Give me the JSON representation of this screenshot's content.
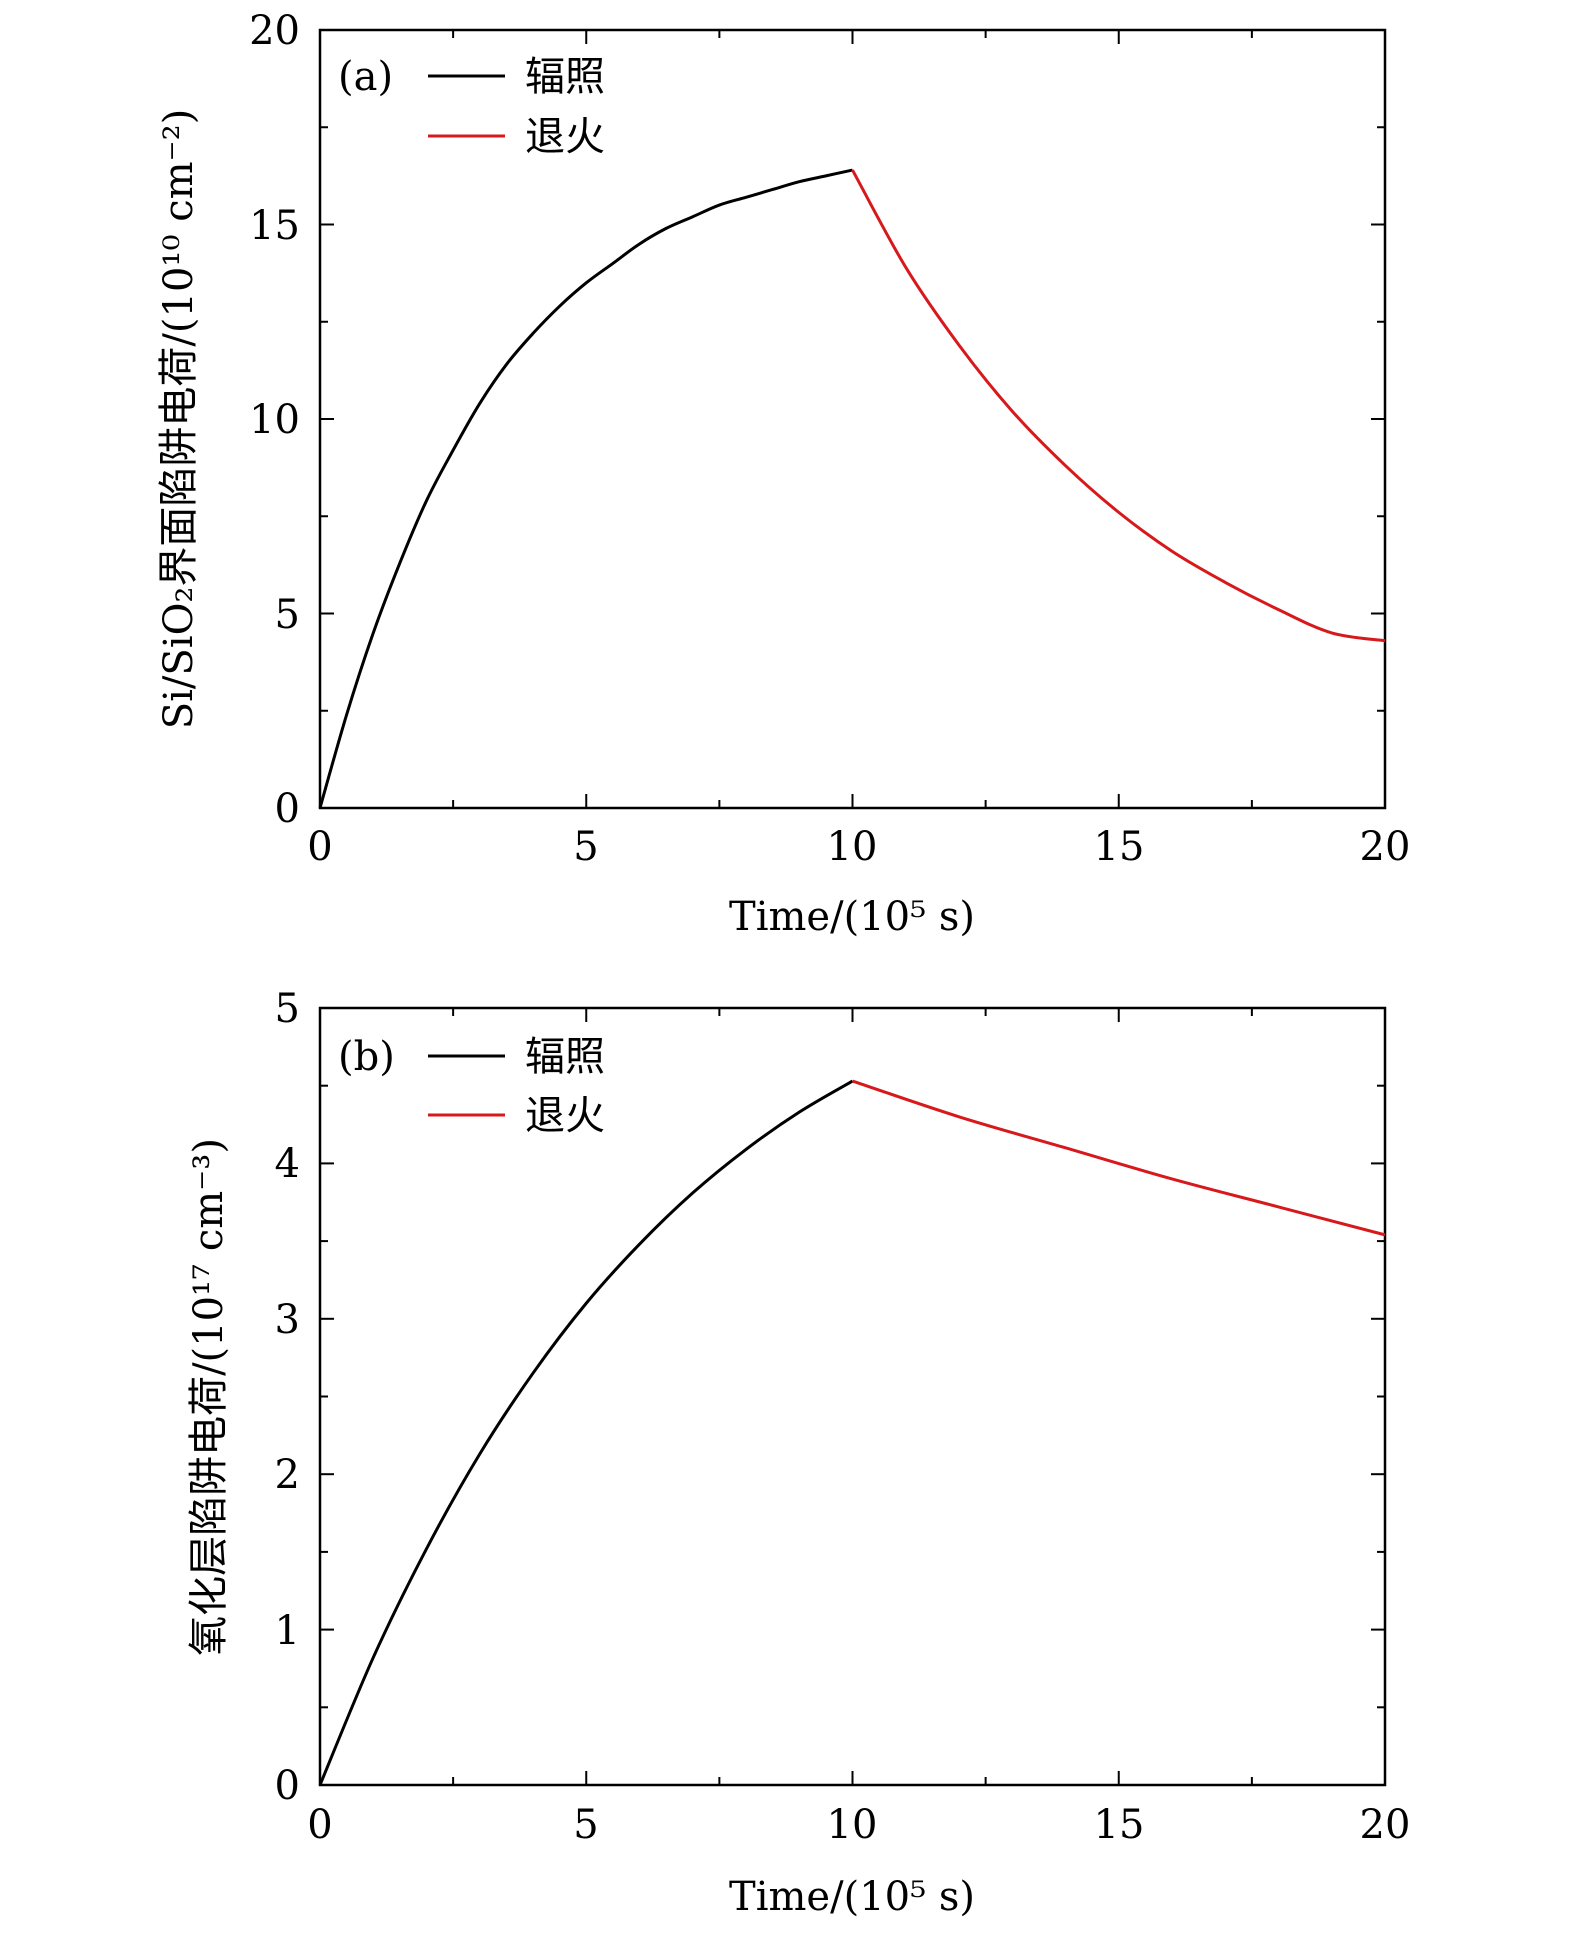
{
  "chart_data": [
    {
      "type": "line",
      "panel_label": "(a)",
      "xlabel": "Time/(10⁵ s)",
      "ylabel": "Si/SiO₂界面陷阱电荷/(10¹⁰ cm⁻²)",
      "xlim": [
        0,
        20
      ],
      "ylim": [
        0,
        20
      ],
      "xticks": [
        "0",
        "5",
        "10",
        "15",
        "20"
      ],
      "yticks": [
        "0",
        "5",
        "10",
        "15",
        "20"
      ],
      "grid": false,
      "legend": "top-left",
      "series": [
        {
          "name": "辐照",
          "color": "#000000",
          "x": [
            0,
            0.5,
            1,
            1.5,
            2,
            2.5,
            3,
            3.5,
            4,
            4.5,
            5,
            5.5,
            6,
            6.5,
            7,
            7.5,
            8,
            8.5,
            9,
            9.5,
            10
          ],
          "y": [
            0,
            2.4,
            4.5,
            6.3,
            7.9,
            9.2,
            10.4,
            11.4,
            12.2,
            12.9,
            13.5,
            14.0,
            14.5,
            14.9,
            15.2,
            15.5,
            15.7,
            15.9,
            16.1,
            16.25,
            16.4
          ]
        },
        {
          "name": "退火",
          "color": "#d7191c",
          "x": [
            10,
            11,
            12,
            13,
            14,
            15,
            16,
            17,
            18,
            19,
            20
          ],
          "y": [
            16.4,
            13.9,
            11.9,
            10.2,
            8.8,
            7.6,
            6.6,
            5.8,
            5.1,
            4.5,
            4.3
          ]
        }
      ]
    },
    {
      "type": "line",
      "panel_label": "(b)",
      "xlabel": "Time/(10⁵ s)",
      "ylabel": "氧化层陷阱电荷/(10¹⁷ cm⁻³)",
      "xlim": [
        0,
        20
      ],
      "ylim": [
        0,
        5
      ],
      "xticks": [
        "0",
        "5",
        "10",
        "15",
        "20"
      ],
      "yticks": [
        "0",
        "1",
        "2",
        "3",
        "4",
        "5"
      ],
      "grid": false,
      "legend": "top-left",
      "series": [
        {
          "name": "辐照",
          "color": "#000000",
          "x": [
            0,
            1,
            2,
            3,
            4,
            5,
            6,
            7,
            8,
            9,
            10
          ],
          "y": [
            0,
            0.82,
            1.52,
            2.13,
            2.65,
            3.1,
            3.48,
            3.81,
            4.09,
            4.33,
            4.53
          ]
        },
        {
          "name": "退火",
          "color": "#d7191c",
          "x": [
            10,
            12,
            14,
            16,
            18,
            20
          ],
          "y": [
            4.53,
            4.3,
            4.1,
            3.9,
            3.72,
            3.54
          ]
        }
      ]
    }
  ]
}
